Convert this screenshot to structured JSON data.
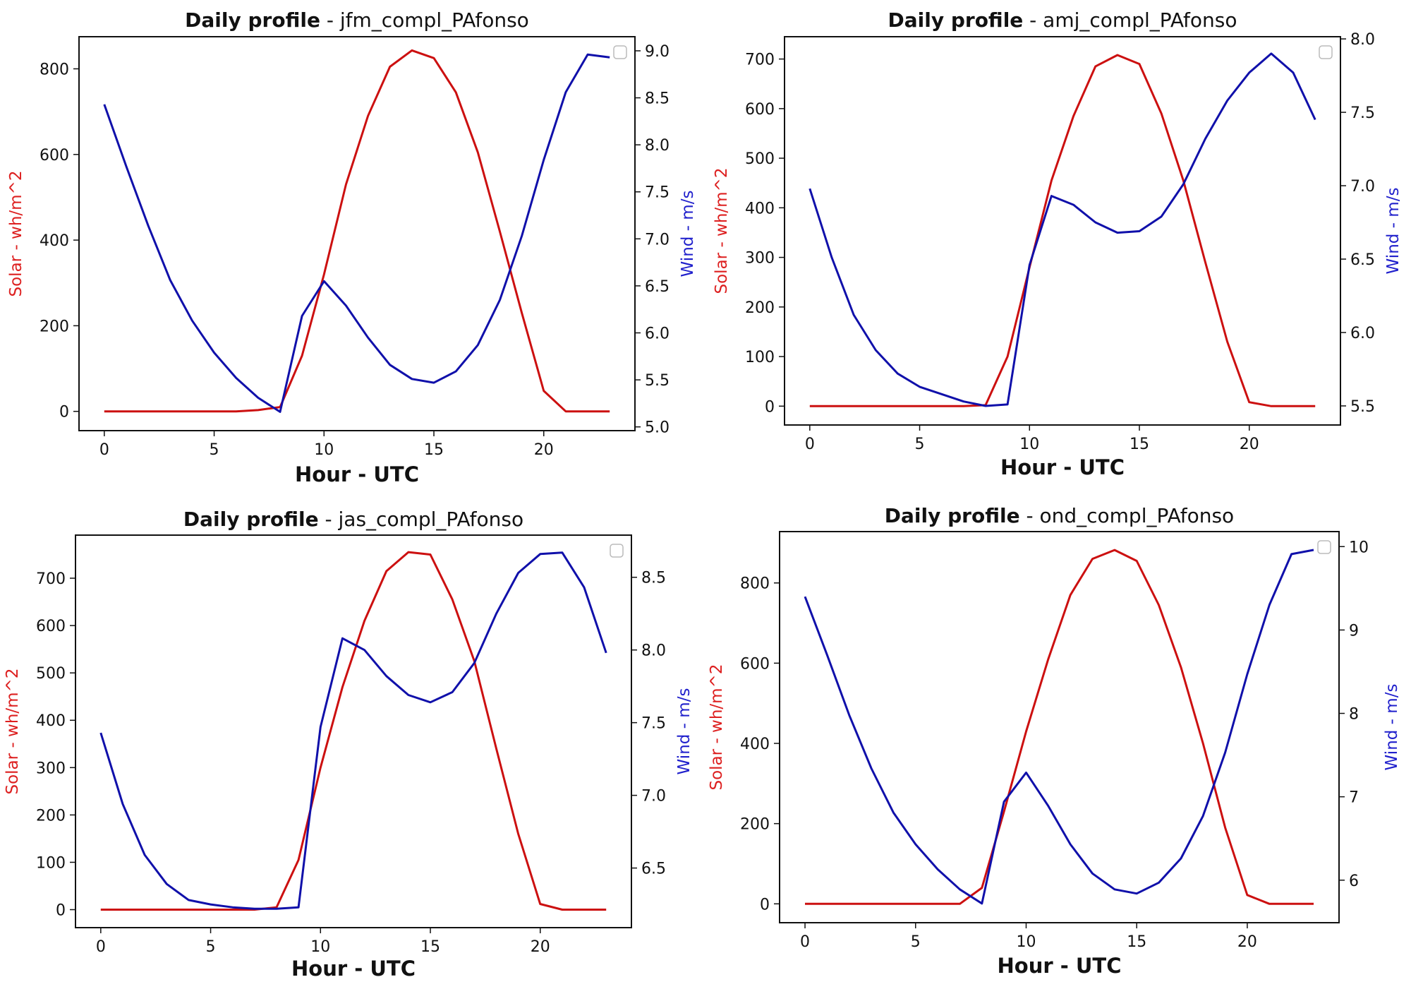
{
  "colors": {
    "solar": "#cc1010",
    "wind": "#1010aa",
    "solar_label": "#dd2020",
    "wind_label": "#2020cc"
  },
  "chart_data": [
    {
      "type": "line",
      "title_bold": "Daily profile",
      "title_rest": " - jfm_compl_PAfonso",
      "xlabel": "Hour - UTC",
      "ylabel_left": "Solar - wh/m^2",
      "ylabel_right": "Wind - m/s",
      "legend": "top-right (empty)",
      "xlim": [
        -1.15,
        24.15
      ],
      "xticks": [
        0,
        5,
        10,
        15,
        20
      ],
      "ylim_left": [
        -45,
        875
      ],
      "yticks_left": [
        0,
        200,
        400,
        600,
        800
      ],
      "ylim_right": [
        4.96,
        9.15
      ],
      "yticks_right": [
        "5.0",
        "5.5",
        "6.0",
        "6.5",
        "7.0",
        "7.5",
        "8.0",
        "8.5",
        "9.0"
      ],
      "x": [
        0,
        1,
        2,
        3,
        4,
        5,
        6,
        7,
        8,
        9,
        10,
        11,
        12,
        13,
        14,
        15,
        16,
        17,
        18,
        19,
        20,
        21,
        22,
        23
      ],
      "series": [
        {
          "axis": "left",
          "color_key": "solar",
          "values": [
            0,
            0,
            0,
            0,
            0,
            0,
            0,
            3,
            10,
            130,
            320,
            530,
            690,
            805,
            843,
            825,
            745,
            605,
            420,
            230,
            48,
            0,
            0,
            0
          ]
        },
        {
          "axis": "right",
          "color_key": "wind",
          "values": [
            8.43,
            7.77,
            7.14,
            6.56,
            6.13,
            5.79,
            5.52,
            5.31,
            5.16,
            6.18,
            6.55,
            6.29,
            5.95,
            5.66,
            5.51,
            5.47,
            5.59,
            5.87,
            6.35,
            7.03,
            7.84,
            8.56,
            8.96,
            8.93
          ]
        }
      ]
    },
    {
      "type": "line",
      "title_bold": "Daily profile",
      "title_rest": " - amj_compl_PAfonso",
      "xlabel": "Hour - UTC",
      "ylabel_left": "Solar - wh/m^2",
      "ylabel_right": "Wind - m/s",
      "legend": "top-right (empty)",
      "xlim": [
        -1.15,
        24.15
      ],
      "xticks": [
        0,
        5,
        10,
        15,
        20
      ],
      "ylim_left": [
        -38,
        745
      ],
      "yticks_left": [
        0,
        100,
        200,
        300,
        400,
        500,
        600,
        700
      ],
      "ylim_right": [
        5.37,
        8.015
      ],
      "yticks_right": [
        "5.5",
        "6.0",
        "6.5",
        "7.0",
        "7.5",
        "8.0"
      ],
      "x": [
        0,
        1,
        2,
        3,
        4,
        5,
        6,
        7,
        8,
        9,
        10,
        11,
        12,
        13,
        14,
        15,
        16,
        17,
        18,
        19,
        20,
        21,
        22,
        23
      ],
      "series": [
        {
          "axis": "left",
          "color_key": "solar",
          "values": [
            0,
            0,
            0,
            0,
            0,
            0,
            0,
            0,
            2,
            100,
            280,
            455,
            585,
            685,
            708,
            690,
            590,
            455,
            290,
            130,
            8,
            0,
            0,
            0
          ]
        },
        {
          "axis": "right",
          "color_key": "wind",
          "values": [
            6.98,
            6.51,
            6.12,
            5.88,
            5.72,
            5.63,
            5.58,
            5.53,
            5.5,
            5.51,
            6.46,
            6.93,
            6.87,
            6.75,
            6.68,
            6.69,
            6.79,
            7.01,
            7.32,
            7.58,
            7.77,
            7.9,
            7.77,
            7.45
          ]
        }
      ]
    },
    {
      "type": "line",
      "title_bold": "Daily profile",
      "title_rest": " - jas_compl_PAfonso",
      "xlabel": "Hour - UTC",
      "ylabel_left": "Solar - wh/m^2",
      "ylabel_right": "Wind - m/s",
      "legend": "top-right (empty)",
      "xlim": [
        -1.15,
        24.15
      ],
      "xticks": [
        0,
        5,
        10,
        15,
        20
      ],
      "ylim_left": [
        -38,
        791
      ],
      "yticks_left": [
        0,
        100,
        200,
        300,
        400,
        500,
        600,
        700
      ],
      "ylim_right": [
        6.09,
        8.79
      ],
      "yticks_right": [
        "6.5",
        "7.0",
        "7.5",
        "8.0",
        "8.5"
      ],
      "x": [
        0,
        1,
        2,
        3,
        4,
        5,
        6,
        7,
        8,
        9,
        10,
        11,
        12,
        13,
        14,
        15,
        16,
        17,
        18,
        19,
        20,
        21,
        22,
        23
      ],
      "series": [
        {
          "axis": "left",
          "color_key": "solar",
          "values": [
            0,
            0,
            0,
            0,
            0,
            0,
            0,
            0,
            5,
            105,
            300,
            470,
            610,
            715,
            755,
            750,
            655,
            525,
            340,
            160,
            12,
            0,
            0,
            0
          ]
        },
        {
          "axis": "right",
          "color_key": "wind",
          "values": [
            7.43,
            6.94,
            6.59,
            6.39,
            6.28,
            6.25,
            6.23,
            6.22,
            6.22,
            6.23,
            7.47,
            8.08,
            8.0,
            7.82,
            7.69,
            7.64,
            7.71,
            7.91,
            8.25,
            8.53,
            8.66,
            8.67,
            8.43,
            7.98
          ]
        }
      ]
    },
    {
      "type": "line",
      "title_bold": "Daily profile",
      "title_rest": " - ond_compl_PAfonso",
      "xlabel": "Hour - UTC",
      "ylabel_left": "Solar - wh/m^2",
      "ylabel_right": "Wind - m/s",
      "legend": "top-right (empty)",
      "xlim": [
        -1.15,
        24.15
      ],
      "xticks": [
        0,
        5,
        10,
        15,
        20
      ],
      "ylim_left": [
        -47,
        928
      ],
      "yticks_left": [
        0,
        200,
        400,
        600,
        800
      ],
      "ylim_right": [
        5.49,
        10.18
      ],
      "yticks_right": [
        "6",
        "7",
        "8",
        "9",
        "10"
      ],
      "x": [
        0,
        1,
        2,
        3,
        4,
        5,
        6,
        7,
        8,
        9,
        10,
        11,
        12,
        13,
        14,
        15,
        16,
        17,
        18,
        19,
        20,
        21,
        22,
        23
      ],
      "series": [
        {
          "axis": "left",
          "color_key": "solar",
          "values": [
            0,
            0,
            0,
            0,
            0,
            0,
            0,
            0,
            40,
            230,
            430,
            610,
            770,
            860,
            882,
            855,
            745,
            590,
            400,
            190,
            22,
            0,
            0,
            0
          ]
        },
        {
          "axis": "right",
          "color_key": "wind",
          "values": [
            9.4,
            8.7,
            7.98,
            7.34,
            6.81,
            6.43,
            6.13,
            5.89,
            5.72,
            6.94,
            7.29,
            6.89,
            6.43,
            6.08,
            5.89,
            5.84,
            5.97,
            6.26,
            6.77,
            7.53,
            8.47,
            9.3,
            9.91,
            9.96
          ]
        }
      ]
    }
  ]
}
